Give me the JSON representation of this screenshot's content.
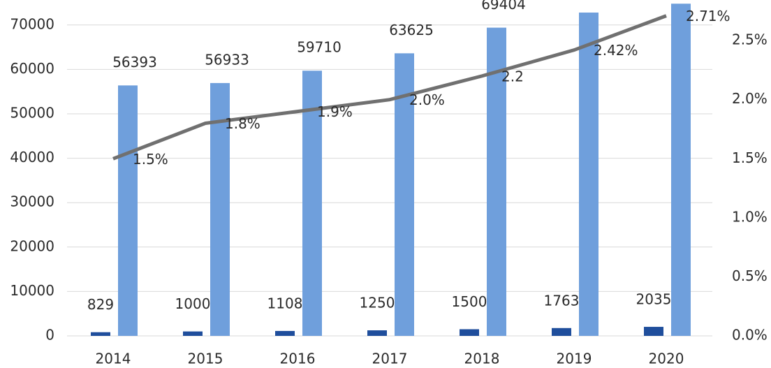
{
  "chart_data": {
    "type": "bar-line",
    "categories": [
      "2014",
      "2015",
      "2016",
      "2017",
      "2018",
      "2019",
      "2020"
    ],
    "series": [
      {
        "type": "bar",
        "color": "#1f4e9c",
        "values": [
          829,
          1000,
          1108,
          1250,
          1500,
          1763,
          2035
        ]
      },
      {
        "type": "bar",
        "color": "#6f9fdc",
        "values": [
          56393,
          56933,
          59710,
          63625,
          69404,
          72800,
          74800
        ],
        "value_labels": [
          "56393",
          "56933",
          "59710",
          "63625",
          "69404",
          null,
          null
        ]
      },
      {
        "type": "line",
        "axis": "y2",
        "color": "#707070",
        "values": [
          1.5,
          1.8,
          1.9,
          2.0,
          2.2,
          2.42,
          2.71
        ],
        "value_labels": [
          "1.5%",
          "1.8%",
          "1.9%",
          "2.0%",
          "2.2",
          "2.42%",
          "2.71%"
        ]
      }
    ],
    "ylim": [
      0,
      75000
    ],
    "yticks": [
      0,
      10000,
      20000,
      30000,
      40000,
      50000,
      60000,
      70000
    ],
    "y2lim": [
      0,
      2.82
    ],
    "y2ticks": [
      {
        "value": 0,
        "label": "0.0%"
      },
      {
        "value": 0.5,
        "label": "0.5%"
      },
      {
        "value": 1,
        "label": "1.0%"
      },
      {
        "value": 1.5,
        "label": "1.5%"
      },
      {
        "value": 2,
        "label": "2.0%"
      },
      {
        "value": 2.5,
        "label": "2.5%"
      }
    ],
    "grid": true
  }
}
